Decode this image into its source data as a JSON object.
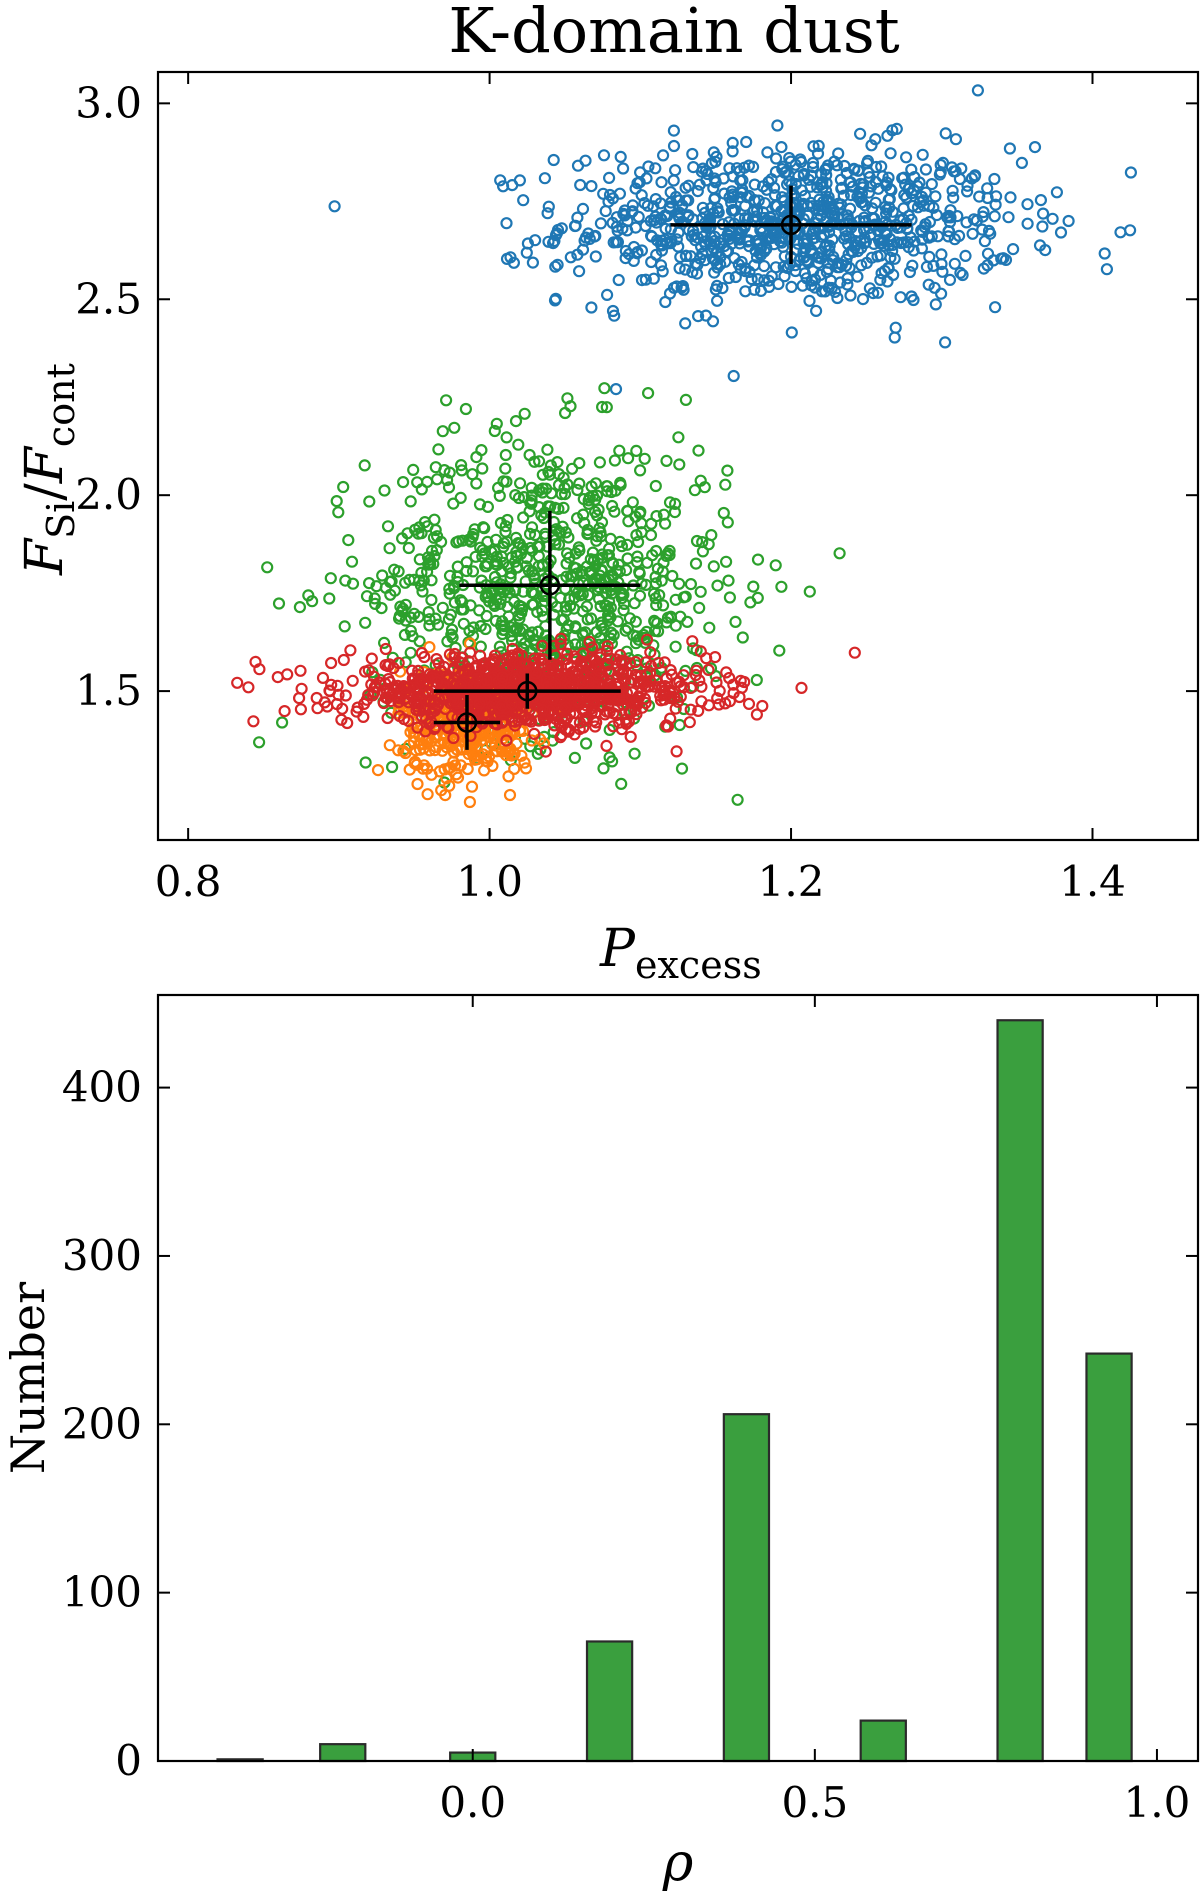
{
  "chart_data": [
    {
      "type": "scatter",
      "title": "K-domain dust",
      "xlabel": "P",
      "xlabel_sub": "excess",
      "ylabel_main1": "F",
      "ylabel_sub1": "Si",
      "ylabel_sep": "/",
      "ylabel_main2": "F",
      "ylabel_sub2": "cont",
      "xlim": [
        0.78,
        1.47
      ],
      "ylim": [
        1.12,
        3.08
      ],
      "xticks": [
        0.8,
        1.0,
        1.2,
        1.4
      ],
      "xtick_labels": [
        "0.8",
        "1.0",
        "1.2",
        "1.4"
      ],
      "yticks": [
        1.5,
        2.0,
        2.5,
        3.0
      ],
      "ytick_labels": [
        "1.5",
        "2.0",
        "2.5",
        "3.0"
      ],
      "series": [
        {
          "name": "blue",
          "color": "#1f77b4",
          "center": [
            1.2,
            2.69
          ],
          "spread": [
            0.075,
            0.1
          ],
          "n": 900,
          "errorbar": {
            "x": 1.2,
            "y": 2.69,
            "xerr": 0.08,
            "yerr": 0.1
          }
        },
        {
          "name": "green",
          "color": "#2ca02c",
          "center": [
            1.04,
            1.77
          ],
          "spread": [
            0.06,
            0.19
          ],
          "n": 850,
          "errorbar": {
            "x": 1.04,
            "y": 1.77,
            "xerr": 0.06,
            "yerr": 0.19
          }
        },
        {
          "name": "orange",
          "color": "#ff7f0e",
          "center": [
            0.985,
            1.42
          ],
          "spread": [
            0.022,
            0.07
          ],
          "n": 400,
          "errorbar": {
            "x": 0.985,
            "y": 1.42,
            "xerr": 0.022,
            "yerr": 0.07
          }
        },
        {
          "name": "red",
          "color": "#d62728",
          "center": [
            1.025,
            1.5
          ],
          "spread": [
            0.06,
            0.045
          ],
          "n": 1000,
          "errorbar": {
            "x": 1.025,
            "y": 1.5,
            "xerr": 0.062,
            "yerr": 0.045
          }
        }
      ]
    },
    {
      "type": "bar",
      "xlabel": "ρ",
      "ylabel": "Number",
      "xlim": [
        -0.46,
        1.06
      ],
      "ylim": [
        0,
        455
      ],
      "xticks": [
        0.0,
        0.5,
        1.0
      ],
      "xtick_labels": [
        "0.0",
        "0.5",
        "1.0"
      ],
      "yticks": [
        0,
        100,
        200,
        300,
        400
      ],
      "ytick_labels": [
        "0",
        "100",
        "200",
        "300",
        "400"
      ],
      "bar_width": 0.066,
      "bar_color": "#3a9f3e",
      "bars": [
        {
          "x": -0.34,
          "value": 1
        },
        {
          "x": -0.19,
          "value": 10
        },
        {
          "x": 0.0,
          "value": 5
        },
        {
          "x": 0.2,
          "value": 71
        },
        {
          "x": 0.4,
          "value": 206
        },
        {
          "x": 0.6,
          "value": 24
        },
        {
          "x": 0.8,
          "value": 440
        },
        {
          "x": 0.93,
          "value": 242
        }
      ]
    }
  ]
}
